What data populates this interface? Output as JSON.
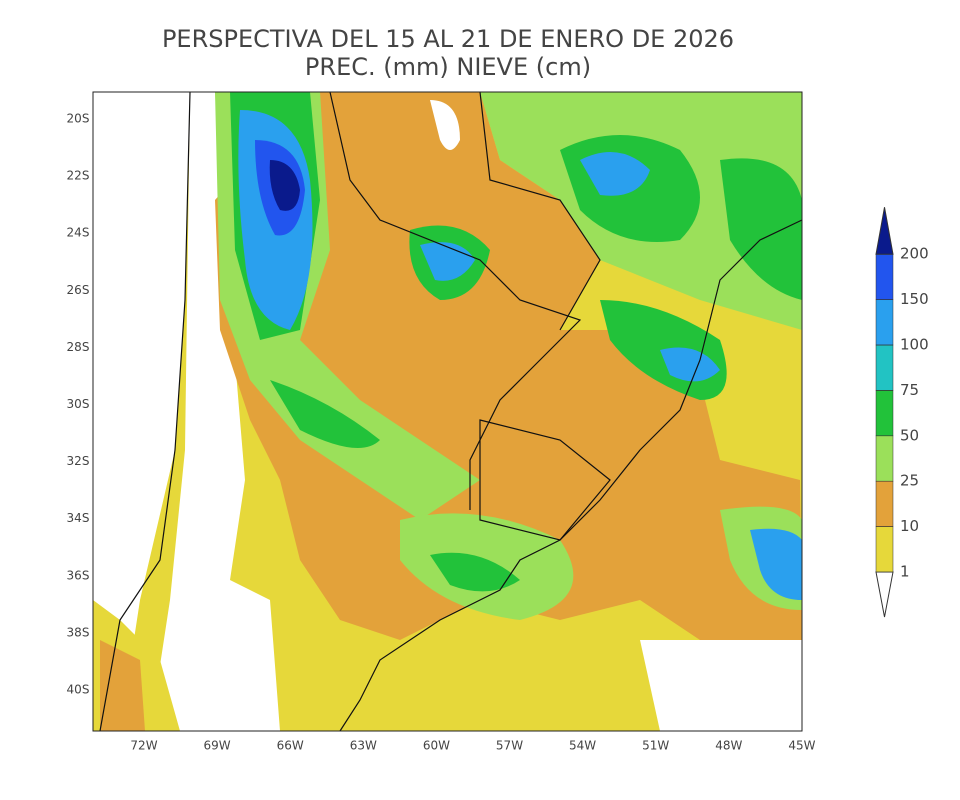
{
  "title": "PERSPECTIVA DEL 15 AL 21 DE ENERO DE 2026",
  "subtitle": "PREC. (mm) NIEVE (cm)",
  "latitude_labels": [
    "20S",
    "22S",
    "24S",
    "26S",
    "28S",
    "30S",
    "32S",
    "34S",
    "36S",
    "38S",
    "40S"
  ],
  "longitude_labels": [
    "72W",
    "69W",
    "66W",
    "63W",
    "60W",
    "57W",
    "54W",
    "51W",
    "48W",
    "45W"
  ],
  "legend": {
    "levels": [
      1,
      10,
      25,
      50,
      75,
      100,
      150,
      200
    ],
    "colors": [
      "#ffffff",
      "#e6d83a",
      "#e3a23a",
      "#9be05a",
      "#22c23a",
      "#22c3c3",
      "#2aa0ee",
      "#2255ee",
      "#0a1a8c"
    ]
  }
}
